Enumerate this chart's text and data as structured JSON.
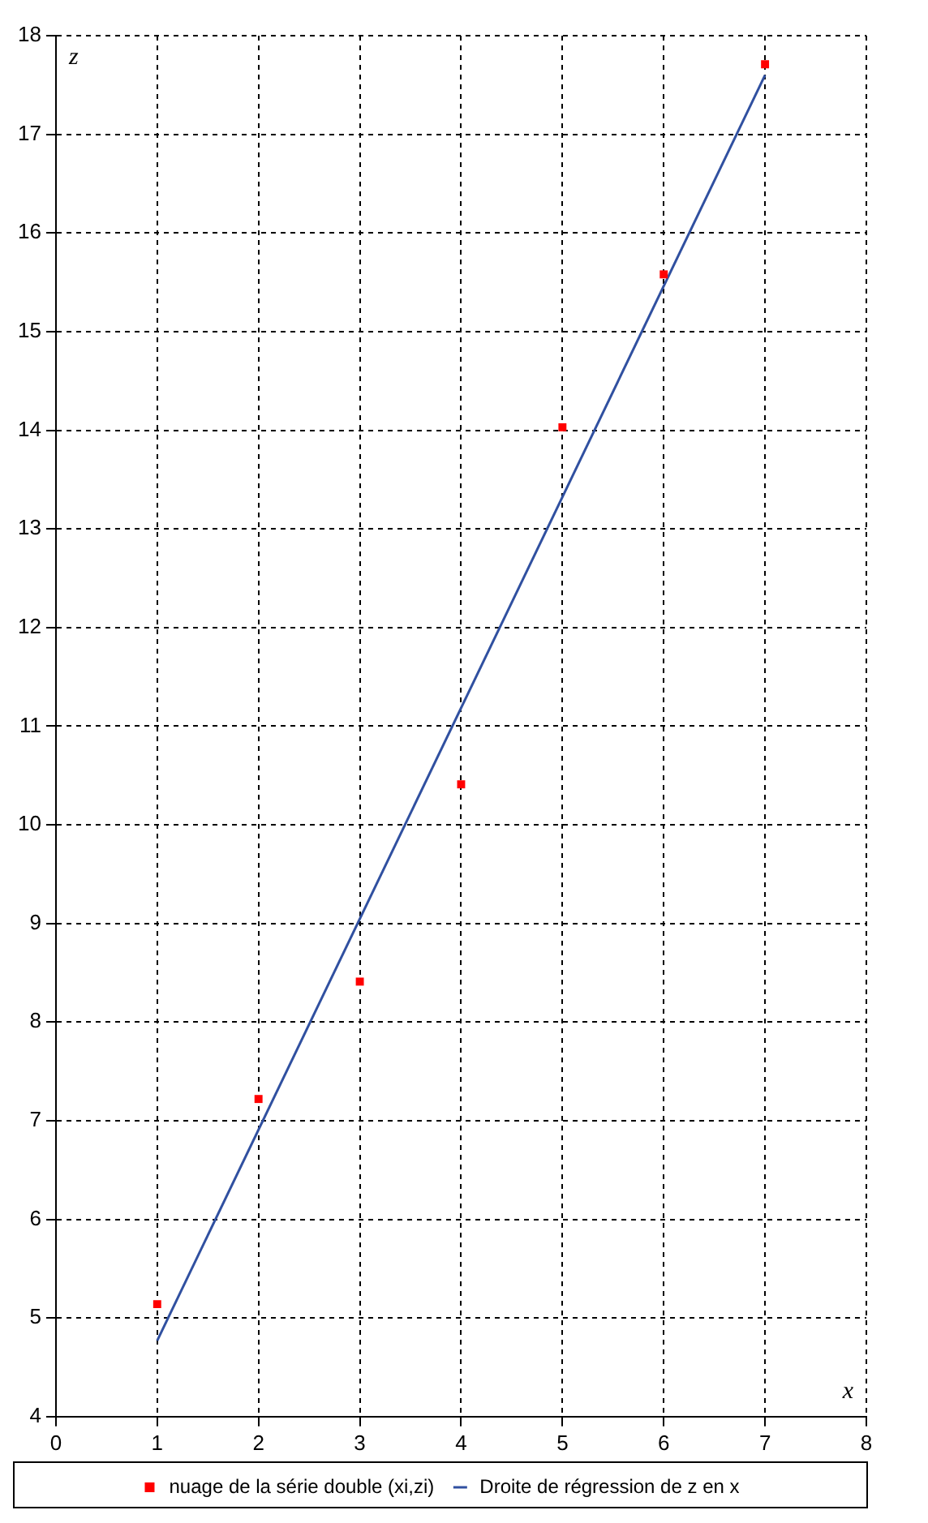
{
  "chart_data": {
    "type": "scatter",
    "xlabel": "x",
    "ylabel": "z",
    "xlim": [
      0,
      8
    ],
    "xticks": [
      0,
      1,
      2,
      3,
      4,
      5,
      6,
      7,
      8
    ],
    "ylim": [
      4,
      18
    ],
    "yticks": [
      4,
      5,
      6,
      7,
      8,
      9,
      10,
      11,
      12,
      13,
      14,
      15,
      16,
      17,
      18
    ],
    "grid": true,
    "legend": "bottom",
    "series": [
      {
        "name": "nuage de la série double (xi,zi)",
        "marker": "square",
        "color": "#ff0000",
        "x": [
          1,
          2,
          3,
          4,
          5,
          6,
          7
        ],
        "values": [
          5.14,
          7.22,
          8.41,
          10.41,
          14.03,
          15.58,
          17.71
        ]
      },
      {
        "name": "Droite de régression de z en x",
        "type": "line",
        "line_style": "solid",
        "color": "#3050a0",
        "x": [
          1,
          7
        ],
        "values": [
          4.77,
          17.6
        ]
      }
    ]
  }
}
